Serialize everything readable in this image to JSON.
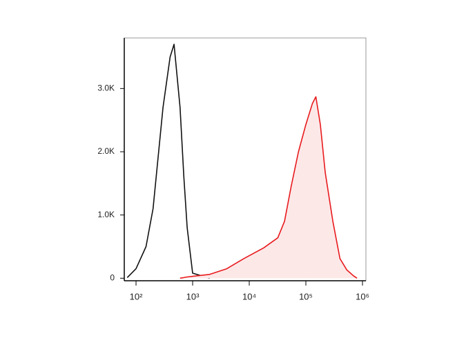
{
  "chart_data": {
    "type": "histogram-line",
    "xscale": "log",
    "x": [
      70,
      100,
      150,
      200,
      300,
      400,
      470,
      600,
      700,
      800,
      1000,
      2000,
      4000,
      8000,
      18000,
      32000,
      42000,
      55000,
      74000,
      100000,
      130000,
      150000,
      180000,
      220000,
      300000,
      400000,
      530000,
      690000,
      800000
    ],
    "series": [
      {
        "color": "#111111",
        "fill": null,
        "values": [
          10,
          150,
          500,
          1100,
          2700,
          3500,
          3700,
          2700,
          1600,
          800,
          80,
          0,
          null,
          null,
          null,
          null,
          null,
          null,
          null,
          null,
          null,
          null,
          null,
          null,
          null,
          null,
          null,
          null,
          null
        ]
      },
      {
        "color": "#e8191c",
        "fill": "#fde8e8",
        "values": [
          null,
          null,
          null,
          null,
          null,
          null,
          null,
          0,
          10,
          20,
          30,
          60,
          150,
          310,
          480,
          640,
          900,
          1450,
          2000,
          2430,
          2760,
          2870,
          2430,
          1670,
          900,
          310,
          130,
          40,
          0
        ]
      }
    ],
    "xlim": [
      62,
      1150000
    ],
    "xticks": [
      {
        "value": 100,
        "label": "10²"
      },
      {
        "value": 1000,
        "label": "10³"
      },
      {
        "value": 10000,
        "label": "10⁴"
      },
      {
        "value": 100000,
        "label": "10⁵"
      },
      {
        "value": 1000000,
        "label": "10⁶"
      }
    ],
    "ylim": [
      -40,
      3800
    ],
    "yticks": [
      0,
      {
        "value": 1000,
        "label": "1.0K"
      },
      {
        "value": 2000,
        "label": "2.0K"
      },
      {
        "value": 3000,
        "label": "3.0K"
      }
    ]
  }
}
